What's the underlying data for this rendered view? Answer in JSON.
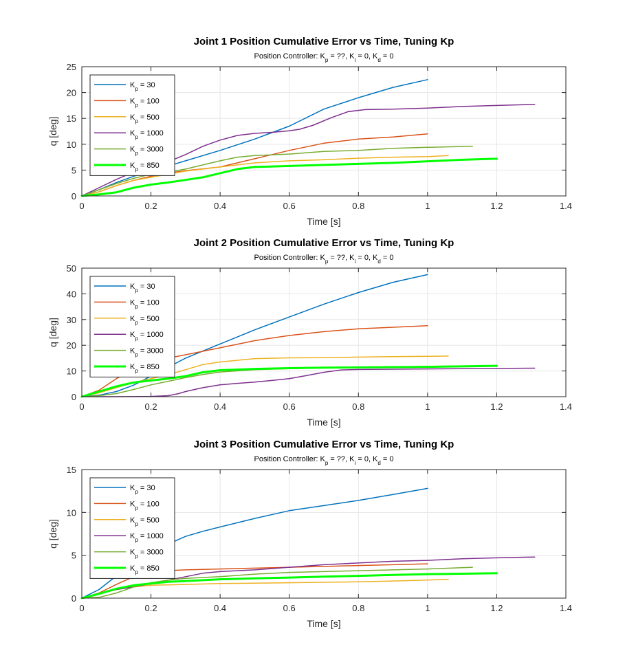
{
  "chart_data": [
    {
      "type": "line",
      "title": "Joint 1 Position Cumulative Error vs Time, Tuning Kp",
      "subtitle": {
        "prefix": "Position Controller: K",
        "p_sub": "p",
        "p_val": " = ??, K",
        "i_sub": "i",
        "i_val": " = 0, K",
        "d_sub": "d",
        "d_val": " = 0"
      },
      "xlabel": "Time [s]",
      "ylabel": "q [deg]",
      "xlim": [
        0,
        1.4
      ],
      "ylim": [
        0,
        25
      ],
      "xticks": [
        "0",
        "0.2",
        "0.4",
        "0.6",
        "0.8",
        "1",
        "1.2",
        "1.4"
      ],
      "yticks": [
        "0",
        "5",
        "10",
        "15",
        "20",
        "25"
      ],
      "grid": true,
      "legend_position": "top-left",
      "series": [
        {
          "name": "K",
          "sub": "p",
          "val": " = 30",
          "color": "#0072BD",
          "width": 1.5,
          "x": [
            0,
            0.05,
            0.1,
            0.15,
            0.2,
            0.25,
            0.3,
            0.4,
            0.5,
            0.6,
            0.7,
            0.8,
            0.9,
            1.0
          ],
          "y": [
            0,
            1.2,
            2.6,
            3.8,
            4.8,
            5.8,
            6.8,
            8.8,
            11,
            13.5,
            16.8,
            19,
            21,
            22.5
          ]
        },
        {
          "name": "K",
          "sub": "p",
          "val": " = 100",
          "color": "#D95319",
          "width": 1.5,
          "x": [
            0,
            0.05,
            0.1,
            0.15,
            0.2,
            0.25,
            0.3,
            0.4,
            0.5,
            0.6,
            0.7,
            0.8,
            0.9,
            1.0
          ],
          "y": [
            0,
            0.8,
            2,
            3,
            3.8,
            4.4,
            4.9,
            5.6,
            7.2,
            8.8,
            10.2,
            11,
            11.4,
            12
          ]
        },
        {
          "name": "K",
          "sub": "p",
          "val": " = 500",
          "color": "#EDB120",
          "width": 1.5,
          "x": [
            0,
            0.05,
            0.1,
            0.15,
            0.2,
            0.25,
            0.3,
            0.4,
            0.5,
            0.6,
            0.7,
            0.8,
            0.9,
            1.0,
            1.06
          ],
          "y": [
            0,
            0.8,
            2,
            3,
            3.6,
            4.2,
            4.8,
            5.6,
            6.4,
            6.8,
            7,
            7.3,
            7.5,
            7.6,
            7.8
          ]
        },
        {
          "name": "K",
          "sub": "p",
          "val": " = 1000",
          "color": "#7E2F8E",
          "width": 1.5,
          "x": [
            0,
            0.05,
            0.1,
            0.15,
            0.2,
            0.25,
            0.3,
            0.35,
            0.4,
            0.45,
            0.5,
            0.55,
            0.6,
            0.63,
            0.67,
            0.72,
            0.77,
            0.82,
            0.9,
            1.0,
            1.1,
            1.2,
            1.31
          ],
          "y": [
            0,
            1.6,
            3.2,
            4.6,
            5.6,
            6.6,
            8,
            9.6,
            10.8,
            11.7,
            12.1,
            12.3,
            12.6,
            12.9,
            13.7,
            15.1,
            16.3,
            16.7,
            16.8,
            17,
            17.3,
            17.5,
            17.7
          ]
        },
        {
          "name": "K",
          "sub": "p",
          "val": " = 3000",
          "color": "#77AC30",
          "width": 1.5,
          "x": [
            0,
            0.05,
            0.1,
            0.15,
            0.2,
            0.25,
            0.3,
            0.35,
            0.4,
            0.45,
            0.5,
            0.6,
            0.7,
            0.8,
            0.9,
            1.0,
            1.13
          ],
          "y": [
            0,
            1.2,
            2.4,
            3.4,
            4.2,
            4.6,
            5.2,
            6,
            6.8,
            7.5,
            7.8,
            8.1,
            8.6,
            8.8,
            9.2,
            9.4,
            9.6
          ]
        },
        {
          "name": "K",
          "sub": "p",
          "val": " = 850",
          "color": "#00FF00",
          "width": 3,
          "x": [
            0,
            0.05,
            0.1,
            0.15,
            0.2,
            0.25,
            0.3,
            0.35,
            0.4,
            0.45,
            0.5,
            0.6,
            0.7,
            0.8,
            0.9,
            1.0,
            1.1,
            1.2
          ],
          "y": [
            0,
            0.3,
            0.7,
            1.6,
            2.2,
            2.6,
            3.1,
            3.6,
            4.4,
            5.2,
            5.6,
            5.8,
            6,
            6.2,
            6.4,
            6.7,
            7,
            7.2
          ]
        }
      ]
    },
    {
      "type": "line",
      "title": "Joint 2 Position Cumulative Error vs Time, Tuning Kp",
      "subtitle": {
        "prefix": "Position Controller: K",
        "p_sub": "p",
        "p_val": " = ??, K",
        "i_sub": "i",
        "i_val": " = 0, K",
        "d_sub": "d",
        "d_val": " = 0"
      },
      "xlabel": "Time [s]",
      "ylabel": "q [deg]",
      "xlim": [
        0,
        1.4
      ],
      "ylim": [
        0,
        50
      ],
      "xticks": [
        "0",
        "0.2",
        "0.4",
        "0.6",
        "0.8",
        "1",
        "1.2",
        "1.4"
      ],
      "yticks": [
        "0",
        "10",
        "20",
        "30",
        "40",
        "50"
      ],
      "grid": true,
      "legend_position": "top-left",
      "series": [
        {
          "name": "K",
          "sub": "p",
          "val": " = 30",
          "color": "#0072BD",
          "width": 1.5,
          "x": [
            0,
            0.05,
            0.1,
            0.15,
            0.2,
            0.25,
            0.3,
            0.4,
            0.5,
            0.6,
            0.7,
            0.8,
            0.9,
            1.0
          ],
          "y": [
            0,
            0.6,
            2,
            4.5,
            8,
            11.5,
            15,
            20.5,
            26,
            31,
            36,
            40.5,
            44.5,
            47.5
          ]
        },
        {
          "name": "K",
          "sub": "p",
          "val": " = 100",
          "color": "#D95319",
          "width": 1.5,
          "x": [
            0,
            0.05,
            0.1,
            0.15,
            0.2,
            0.25,
            0.3,
            0.4,
            0.5,
            0.6,
            0.7,
            0.8,
            0.9,
            1.0
          ],
          "y": [
            0,
            2.5,
            7,
            11,
            13.5,
            15,
            16.3,
            19,
            21.8,
            23.8,
            25.3,
            26.4,
            27,
            27.6
          ]
        },
        {
          "name": "K",
          "sub": "p",
          "val": " = 500",
          "color": "#EDB120",
          "width": 1.5,
          "x": [
            0,
            0.05,
            0.1,
            0.15,
            0.2,
            0.25,
            0.3,
            0.35,
            0.4,
            0.5,
            0.6,
            0.7,
            0.8,
            0.9,
            1.0,
            1.06
          ],
          "y": [
            0,
            1.5,
            3.5,
            5.5,
            7,
            8.5,
            10.5,
            12.5,
            13.5,
            14.8,
            15.1,
            15.2,
            15.4,
            15.6,
            15.7,
            15.8
          ]
        },
        {
          "name": "K",
          "sub": "p",
          "val": " = 1000",
          "color": "#7E2F8E",
          "width": 1.5,
          "x": [
            0,
            0.1,
            0.2,
            0.25,
            0.28,
            0.3,
            0.35,
            0.4,
            0.45,
            0.5,
            0.55,
            0.6,
            0.65,
            0.7,
            0.75,
            0.8,
            0.9,
            1.0,
            1.1,
            1.2,
            1.31
          ],
          "y": [
            0,
            0,
            0.1,
            0.4,
            1.2,
            2,
            3.5,
            4.6,
            5.2,
            5.7,
            6.3,
            7,
            8.2,
            9.5,
            10.4,
            10.6,
            10.7,
            10.8,
            10.9,
            11,
            11.1
          ]
        },
        {
          "name": "K",
          "sub": "p",
          "val": " = 3000",
          "color": "#77AC30",
          "width": 1.5,
          "x": [
            0,
            0.05,
            0.1,
            0.15,
            0.2,
            0.25,
            0.3,
            0.35,
            0.4,
            0.5,
            0.6,
            0.7,
            0.8,
            0.9,
            1.0,
            1.13
          ],
          "y": [
            0,
            0.4,
            1.2,
            2.8,
            4.6,
            6,
            7.4,
            8.6,
            9.6,
            10.5,
            10.9,
            11.2,
            11.4,
            11.6,
            11.8,
            12
          ]
        },
        {
          "name": "K",
          "sub": "p",
          "val": " = 850",
          "color": "#00FF00",
          "width": 3,
          "x": [
            0,
            0.05,
            0.1,
            0.15,
            0.2,
            0.25,
            0.3,
            0.35,
            0.4,
            0.5,
            0.6,
            0.7,
            0.8,
            0.9,
            1.0,
            1.1,
            1.2
          ],
          "y": [
            0,
            2,
            4,
            5.5,
            6.3,
            7,
            8,
            9.5,
            10.3,
            10.8,
            11.1,
            11.3,
            11.4,
            11.5,
            11.6,
            11.8,
            12
          ]
        }
      ]
    },
    {
      "type": "line",
      "title": "Joint 3 Position Cumulative Error vs Time, Tuning Kp",
      "subtitle": {
        "prefix": "Position Controller: K",
        "p_sub": "p",
        "p_val": " = ??, K",
        "i_sub": "i",
        "i_val": " = 0, K",
        "d_sub": "d",
        "d_val": " = 0"
      },
      "xlabel": "Time [s]",
      "ylabel": "q [deg]",
      "xlim": [
        0,
        1.4
      ],
      "ylim": [
        0,
        15
      ],
      "xticks": [
        "0",
        "0.2",
        "0.4",
        "0.6",
        "0.8",
        "1",
        "1.2",
        "1.4"
      ],
      "yticks": [
        "0",
        "5",
        "10",
        "15"
      ],
      "grid": true,
      "legend_position": "top-left",
      "series": [
        {
          "name": "K",
          "sub": "p",
          "val": " = 30",
          "color": "#0072BD",
          "width": 1.5,
          "x": [
            0,
            0.05,
            0.1,
            0.15,
            0.2,
            0.25,
            0.3,
            0.35,
            0.4,
            0.5,
            0.6,
            0.7,
            0.8,
            0.9,
            1.0
          ],
          "y": [
            0,
            1,
            2.6,
            4.2,
            5.4,
            6.3,
            7.2,
            7.8,
            8.3,
            9.3,
            10.2,
            10.8,
            11.4,
            12.1,
            12.8
          ]
        },
        {
          "name": "K",
          "sub": "p",
          "val": " = 100",
          "color": "#D95319",
          "width": 1.5,
          "x": [
            0,
            0.05,
            0.1,
            0.15,
            0.2,
            0.25,
            0.3,
            0.4,
            0.5,
            0.6,
            0.7,
            0.8,
            0.9,
            1.0
          ],
          "y": [
            0,
            0.6,
            1.6,
            2.5,
            3,
            3.2,
            3.3,
            3.4,
            3.5,
            3.6,
            3.7,
            3.8,
            3.9,
            4
          ]
        },
        {
          "name": "K",
          "sub": "p",
          "val": " = 500",
          "color": "#EDB120",
          "width": 1.5,
          "x": [
            0,
            0.05,
            0.1,
            0.15,
            0.2,
            0.3,
            0.4,
            0.5,
            0.6,
            0.7,
            0.8,
            0.9,
            1.0,
            1.06
          ],
          "y": [
            0,
            0.5,
            1,
            1.3,
            1.5,
            1.6,
            1.7,
            1.75,
            1.8,
            1.85,
            1.9,
            2,
            2.1,
            2.2
          ]
        },
        {
          "name": "K",
          "sub": "p",
          "val": " = 1000",
          "color": "#7E2F8E",
          "width": 1.5,
          "x": [
            0,
            0.05,
            0.1,
            0.15,
            0.2,
            0.25,
            0.3,
            0.35,
            0.4,
            0.5,
            0.6,
            0.7,
            0.8,
            0.9,
            1.0,
            1.1,
            1.2,
            1.31
          ],
          "y": [
            0,
            0.5,
            1,
            1.3,
            1.7,
            2.1,
            2.5,
            2.9,
            3.1,
            3.3,
            3.6,
            3.9,
            4.1,
            4.3,
            4.4,
            4.6,
            4.7,
            4.8
          ]
        },
        {
          "name": "K",
          "sub": "p",
          "val": " = 3000",
          "color": "#77AC30",
          "width": 1.5,
          "x": [
            0,
            0.05,
            0.1,
            0.15,
            0.2,
            0.25,
            0.3,
            0.4,
            0.5,
            0.6,
            0.7,
            0.8,
            0.9,
            1.0,
            1.13
          ],
          "y": [
            0,
            0.1,
            0.6,
            1.3,
            1.8,
            2.1,
            2.3,
            2.5,
            2.8,
            3,
            3.1,
            3.2,
            3.3,
            3.4,
            3.6
          ]
        },
        {
          "name": "K",
          "sub": "p",
          "val": " = 850",
          "color": "#00FF00",
          "width": 3,
          "x": [
            0,
            0.05,
            0.1,
            0.15,
            0.2,
            0.25,
            0.3,
            0.4,
            0.5,
            0.6,
            0.7,
            0.8,
            0.9,
            1.0,
            1.1,
            1.2
          ],
          "y": [
            0,
            0.5,
            1.1,
            1.5,
            1.7,
            1.9,
            2,
            2.2,
            2.3,
            2.4,
            2.5,
            2.6,
            2.7,
            2.8,
            2.85,
            2.9
          ]
        }
      ]
    }
  ]
}
